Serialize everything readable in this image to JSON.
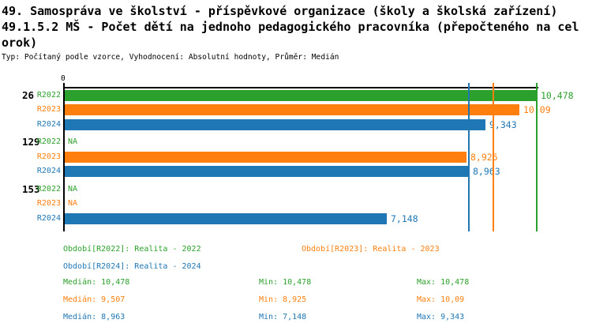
{
  "title": {
    "line1": "49. Samospráva ve školství - příspěvkové organizace (školy a školská zařízení)",
    "line2": "49.1.5.2 MŠ - Počet dětí na jednoho pedagogického pracovníka (přepočteného na cel",
    "line3": "orok)",
    "subtitle": "Typ: Počítaný podle vzorce, Vyhodnocení: Absolutní hodnoty, Průměr: Medián"
  },
  "colors": {
    "r2022": "#2CA02C",
    "r2023": "#FF7F0E",
    "r2024": "#1F77B4",
    "axis": "#000000"
  },
  "axis": {
    "zero_label": "0"
  },
  "chart_data": {
    "type": "bar",
    "orientation": "horizontal",
    "xlabel": "",
    "ylabel": "",
    "xlim": [
      0,
      10.478
    ],
    "grid": false,
    "groups": [
      {
        "id": "26",
        "rows": [
          {
            "series": "r2022",
            "series_label": "R2022",
            "value": 10.478,
            "value_label": "10,478"
          },
          {
            "series": "r2023",
            "series_label": "R2023",
            "value": 10.09,
            "value_label": "10,09"
          },
          {
            "series": "r2024",
            "series_label": "R2024",
            "value": 9.343,
            "value_label": "9,343"
          }
        ]
      },
      {
        "id": "129",
        "rows": [
          {
            "series": "r2022",
            "series_label": "R2022",
            "value": null,
            "value_label": "NA"
          },
          {
            "series": "r2023",
            "series_label": "R2023",
            "value": 8.925,
            "value_label": "8,925"
          },
          {
            "series": "r2024",
            "series_label": "R2024",
            "value": 8.963,
            "value_label": "8,963"
          }
        ]
      },
      {
        "id": "153",
        "rows": [
          {
            "series": "r2022",
            "series_label": "R2022",
            "value": null,
            "value_label": "NA"
          },
          {
            "series": "r2023",
            "series_label": "R2023",
            "value": null,
            "value_label": "NA"
          },
          {
            "series": "r2024",
            "series_label": "R2024",
            "value": 7.148,
            "value_label": "7,148"
          }
        ]
      }
    ],
    "median_lines": [
      {
        "series": "r2022",
        "value": 10.478
      },
      {
        "series": "r2023",
        "value": 9.507
      },
      {
        "series": "r2024",
        "value": 8.963
      }
    ]
  },
  "legend": [
    {
      "series": "r2022",
      "label": "Období[R2022]: Realita - 2022"
    },
    {
      "series": "r2023",
      "label": "Období[R2023]: Realita - 2023"
    },
    {
      "series": "r2024",
      "label": "Období[R2024]: Realita - 2024"
    }
  ],
  "stats": [
    {
      "series": "r2022",
      "median": "Medián: 10,478",
      "min": "Min: 10,478",
      "max": "Max: 10,478"
    },
    {
      "series": "r2023",
      "median": "Medián: 9,507",
      "min": "Min: 8,925",
      "max": "Max: 10,09"
    },
    {
      "series": "r2024",
      "median": "Medián: 8,963",
      "min": "Min: 7,148",
      "max": "Max: 9,343"
    }
  ]
}
